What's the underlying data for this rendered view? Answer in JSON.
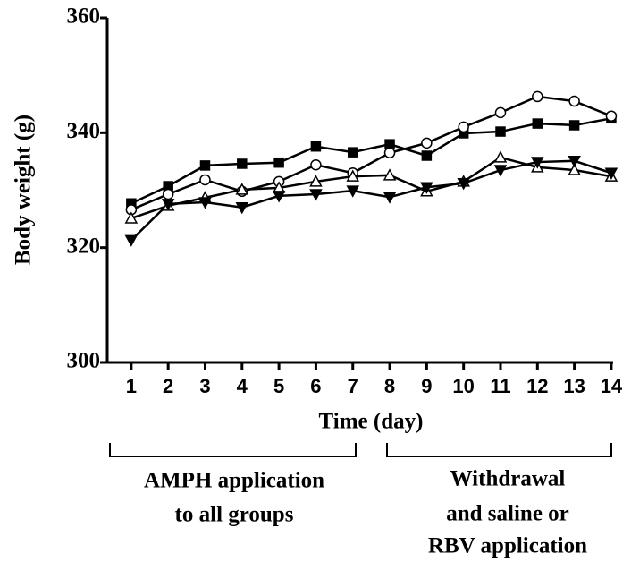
{
  "chart_data": {
    "type": "line",
    "y_label": "Body weight (g)",
    "x_label": "Time (day)",
    "annotations": [
      {
        "lines": [
          "AMPH application",
          "to all groups"
        ]
      },
      {
        "lines": [
          "Withdrawal",
          "and saline or",
          "RBV application"
        ]
      }
    ],
    "x": [
      1,
      2,
      3,
      4,
      5,
      6,
      7,
      8,
      9,
      10,
      11,
      12,
      13,
      14
    ],
    "xlim": [
      0.35,
      14.05
    ],
    "xticks": [
      1,
      2,
      3,
      4,
      5,
      6,
      7,
      8,
      9,
      10,
      11,
      12,
      13,
      14
    ],
    "ylim": [
      300,
      360
    ],
    "yticks": [
      300,
      320,
      340,
      360
    ],
    "series": [
      {
        "color": "#000000",
        "marker": "square",
        "filled": true,
        "values": [
          327.7,
          330.7,
          334.3,
          334.6,
          334.8,
          337.6,
          336.6,
          338.0,
          336.0,
          339.9,
          340.2,
          341.6,
          341.3,
          342.5
        ]
      },
      {
        "color": "#000000",
        "marker": "circle",
        "filled": false,
        "values": [
          326.6,
          329.3,
          331.8,
          329.8,
          331.5,
          334.4,
          333.0,
          336.5,
          338.2,
          341.0,
          343.5,
          346.3,
          345.5,
          342.9
        ]
      },
      {
        "color": "#000000",
        "marker": "triangle",
        "filled": false,
        "values": [
          325.1,
          327.3,
          328.7,
          330.1,
          330.4,
          331.5,
          332.4,
          332.6,
          329.8,
          331.5,
          335.7,
          334.0,
          333.5,
          332.4
        ]
      },
      {
        "color": "#000000",
        "marker": "triangle-down",
        "filled": true,
        "values": [
          321.3,
          327.6,
          327.9,
          327.0,
          329.0,
          329.3,
          329.9,
          328.8,
          330.5,
          331.2,
          333.5,
          334.9,
          335.1,
          333.0
        ]
      }
    ]
  }
}
